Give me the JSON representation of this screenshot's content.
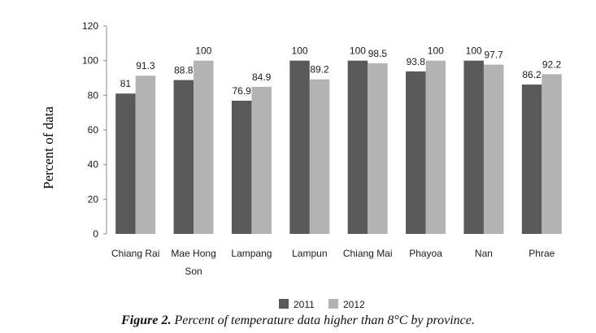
{
  "chart_data": {
    "type": "bar",
    "categories": [
      [
        "Chiang Rai"
      ],
      [
        "Mae Hong",
        "Son"
      ],
      [
        "Lampang"
      ],
      [
        "Lampun"
      ],
      [
        "Chiang Mai"
      ],
      [
        "Phayoa"
      ],
      [
        "Nan"
      ],
      [
        "Phrae"
      ]
    ],
    "series": [
      {
        "name": "2011",
        "color": "#595959",
        "values": [
          81,
          88.8,
          76.9,
          100,
          100,
          93.8,
          100,
          86.2
        ],
        "labels": [
          "81",
          "88.8",
          "76.9",
          "100",
          "100",
          "93.8",
          "100",
          "86.2"
        ]
      },
      {
        "name": "2012",
        "color": "#b3b3b3",
        "values": [
          91.3,
          100,
          84.9,
          89.2,
          98.5,
          100,
          97.7,
          92.2
        ],
        "labels": [
          "91.3",
          "100",
          "84.9",
          "89.2",
          "98.5",
          "100",
          "97.7",
          "92.2"
        ]
      }
    ],
    "ylabel": "Percent of data",
    "ylim": [
      0,
      120
    ],
    "yticks": [
      "0",
      "20",
      "40",
      "60",
      "80",
      "100",
      "120"
    ],
    "grid": false,
    "legend_position": "bottom"
  },
  "caption": {
    "label": "Figure 2.",
    "text": " Percent of temperature data higher than 8°C by province."
  }
}
